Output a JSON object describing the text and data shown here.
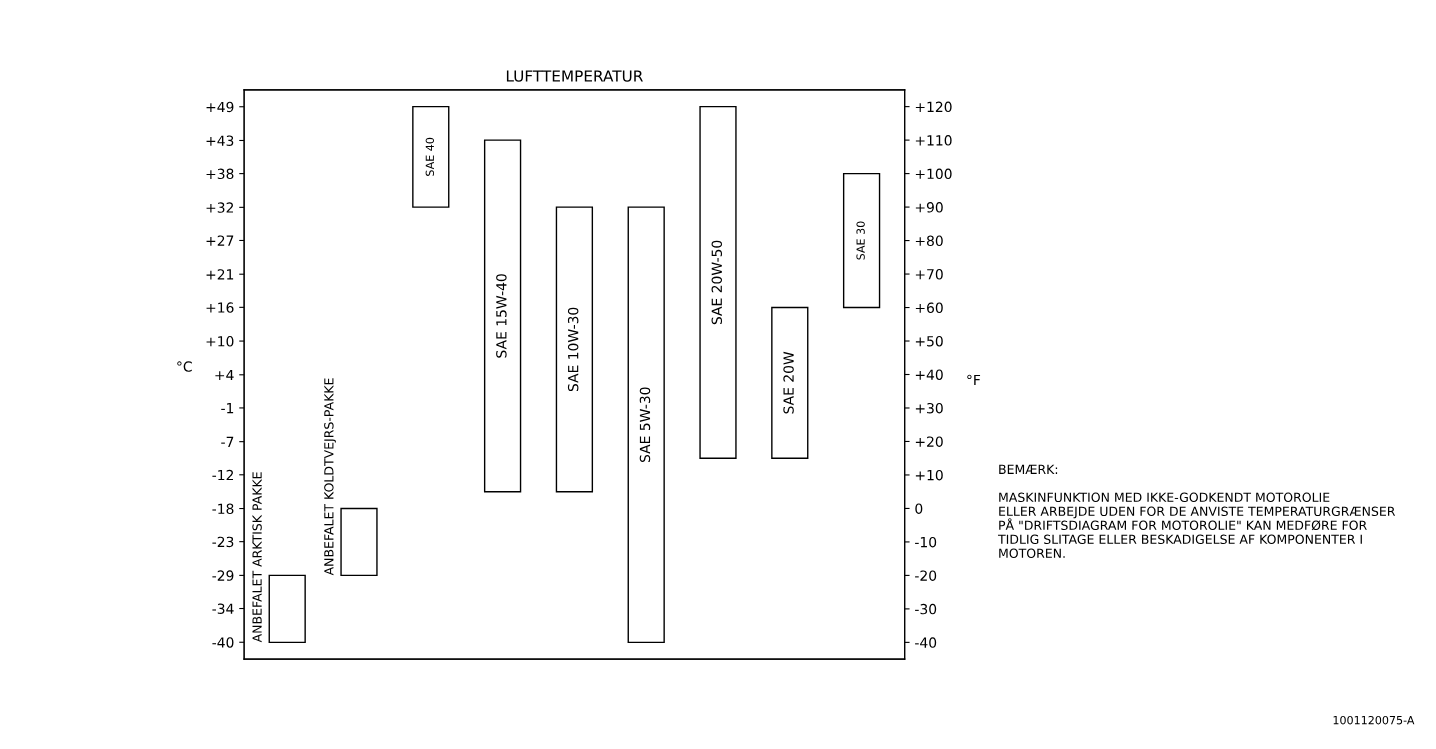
{
  "chart_data": {
    "type": "bar",
    "title": "LUFTTEMPERATUR",
    "ylabel": "°F",
    "y2label": "°C",
    "categories": [
      "ANBEFALET ARKTISK PAKKE",
      "ANBEFALET KOLDTVEJRS-PAKKE",
      "SAE 40",
      "SAE 15W-40",
      "SAE 10W-30",
      "SAE 5W-30",
      "SAE 20W-50",
      "SAE 20W",
      "SAE 30"
    ],
    "base": [
      -40,
      -20,
      90,
      5,
      5,
      -40,
      15,
      15,
      60
    ],
    "values": [
      20,
      20,
      30,
      105,
      85,
      130,
      105,
      45,
      40
    ],
    "color": "#ffffff",
    "ylim": [
      -45,
      125
    ],
    "yticks": [
      {
        "value": 120,
        "label": "+120"
      },
      {
        "value": 110,
        "label": "+110"
      },
      {
        "value": 100,
        "label": "+100"
      },
      {
        "value": 90,
        "label": "+90"
      },
      {
        "value": 80,
        "label": "+80"
      },
      {
        "value": 70,
        "label": "+70"
      },
      {
        "value": 60,
        "label": "+60"
      },
      {
        "value": 50,
        "label": "+50"
      },
      {
        "value": 40,
        "label": "+40"
      },
      {
        "value": 30,
        "label": "+30"
      },
      {
        "value": 20,
        "label": "+20"
      },
      {
        "value": 10,
        "label": "+10"
      },
      0,
      -10,
      -20,
      -30,
      -40
    ],
    "y2lim": [
      -42.8,
      51.7
    ],
    "y2ticks": [
      {
        "value": 48.9,
        "label": "+49"
      },
      {
        "value": 43.3,
        "label": "+43"
      },
      {
        "value": 37.8,
        "label": "+38"
      },
      {
        "value": 32.2,
        "label": "+32"
      },
      {
        "value": 26.7,
        "label": "+27"
      },
      {
        "value": 21.1,
        "label": "+21"
      },
      {
        "value": 15.6,
        "label": "+16"
      },
      {
        "value": 10,
        "label": "+10"
      },
      {
        "value": 4.4,
        "label": "+4"
      },
      {
        "value": -1.1,
        "label": "-1"
      },
      {
        "value": -6.7,
        "label": "-7"
      },
      {
        "value": -12.2,
        "label": "-12"
      },
      {
        "value": -17.8,
        "label": "-18"
      },
      {
        "value": -23.3,
        "label": "-23"
      },
      {
        "value": -28.9,
        "label": "-29"
      },
      {
        "value": -34.4,
        "label": "-34"
      },
      {
        "value": -40,
        "label": "-40"
      }
    ],
    "grid": false,
    "annotations": [
      "BEMÆRK:\n\nMASKINFUNKTION MED IKKE-GODKENDT MOTOROLIE\nELLER ARBEJDE UDEN FOR DE ANVISTE TEMPERATURGRÆNSER\nPÅ \"DRIFTSDIAGRAM FOR MOTOROLIE\" KAN MEDFØRE FOR\nTIDLIG SLITAGE ELLER BESKADIGELSE AF KOMPONENTER I\nMOTOREN.",
      "1001120075-A"
    ]
  }
}
